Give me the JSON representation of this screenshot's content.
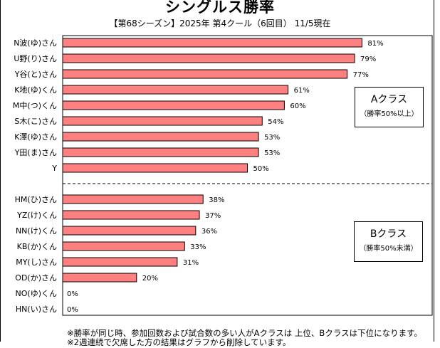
{
  "chart_data": {
    "type": "bar",
    "orientation": "horizontal",
    "title": "シングルス勝率",
    "subtitle": "【第68シーズン】2025年 第4クール（6回目） 11/5現在",
    "xlabel": "",
    "ylabel": "",
    "xlim": [
      0,
      100
    ],
    "grid": false,
    "bar_color": "#ff8080",
    "value_suffix": "%",
    "groups": [
      {
        "name": "Aクラス",
        "description": "（勝率50%以上）",
        "categories": [
          "N波(ゆ)さん",
          "U野(り)さん",
          "Y谷(と)さん",
          "K地(ゆ)くん",
          "M中(つ)くん",
          "S木(こ)さん",
          "K澤(ゆ)さん",
          "Y田(ま)さん",
          "Y"
        ],
        "values": [
          81,
          79,
          77,
          61,
          60,
          54,
          53,
          53,
          50
        ]
      },
      {
        "name": "Bクラス",
        "description": "（勝率50%未満）",
        "categories": [
          "HM(ひ)さん",
          "YZ(け)くん",
          "NN(け)くん",
          "KB(か)くん",
          "MY(し)さん",
          "OD(か)さん",
          "NO(ゆ)くん",
          "HN(い)さん"
        ],
        "values": [
          38,
          37,
          36,
          33,
          31,
          20,
          0,
          0
        ]
      }
    ],
    "separator": "dashed line between Aクラス and Bクラス"
  },
  "legend": {
    "a_class": {
      "main": "Aクラス",
      "sub": "（勝率50%以上）"
    },
    "b_class": {
      "main": "Bクラス",
      "sub": "（勝率50%未満）"
    }
  },
  "notes": [
    "※勝率が同じ時、参加回数および試合数の多い人がAクラスは 上位、Bクラスは下位になります。",
    "※2週連続で欠席した方の結果はグラフから削除しています。"
  ]
}
